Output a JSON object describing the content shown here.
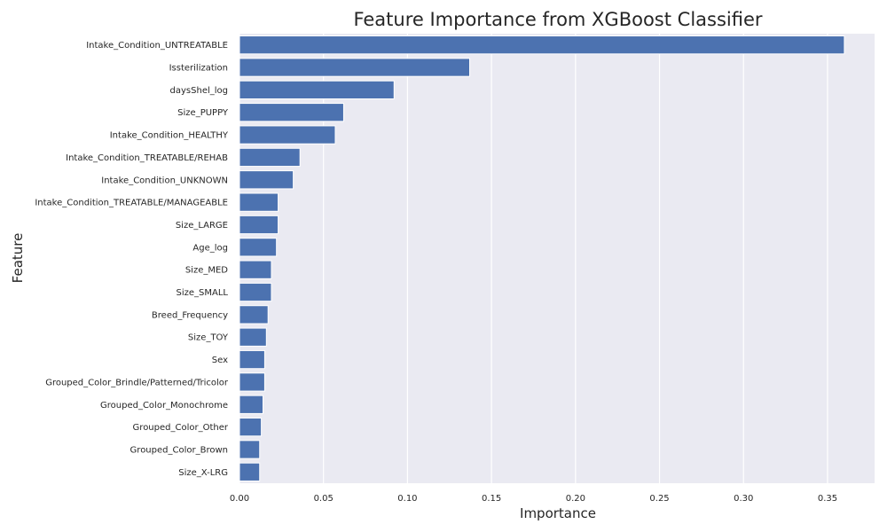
{
  "chart_data": {
    "type": "bar",
    "orientation": "horizontal",
    "title": "Feature Importance from XGBoost Classifier",
    "xlabel": "Importance",
    "ylabel": "Feature",
    "xlim": [
      0,
      0.378
    ],
    "xticks": [
      0.0,
      0.05,
      0.1,
      0.15,
      0.2,
      0.25,
      0.3,
      0.35
    ],
    "xtick_labels": [
      "0.00",
      "0.05",
      "0.10",
      "0.15",
      "0.20",
      "0.25",
      "0.30",
      "0.35"
    ],
    "grid": true,
    "bar_color": "#4c72b0",
    "background_color": "#eaeaf2",
    "categories": [
      "Intake_Condition_UNTREATABLE",
      "Issterilization",
      "daysShel_log",
      "Size_PUPPY",
      "Intake_Condition_HEALTHY",
      "Intake_Condition_TREATABLE/REHAB",
      "Intake_Condition_UNKNOWN",
      "Intake_Condition_TREATABLE/MANAGEABLE",
      "Size_LARGE",
      "Age_log",
      "Size_MED",
      "Size_SMALL",
      "Breed_Frequency",
      "Size_TOY",
      "Sex",
      "Grouped_Color_Brindle/Patterned/Tricolor",
      "Grouped_Color_Monochrome",
      "Grouped_Color_Other",
      "Grouped_Color_Brown",
      "Size_X-LRG"
    ],
    "values": [
      0.36,
      0.137,
      0.092,
      0.062,
      0.057,
      0.036,
      0.032,
      0.023,
      0.023,
      0.022,
      0.019,
      0.019,
      0.017,
      0.016,
      0.015,
      0.015,
      0.014,
      0.013,
      0.012,
      0.012
    ]
  }
}
